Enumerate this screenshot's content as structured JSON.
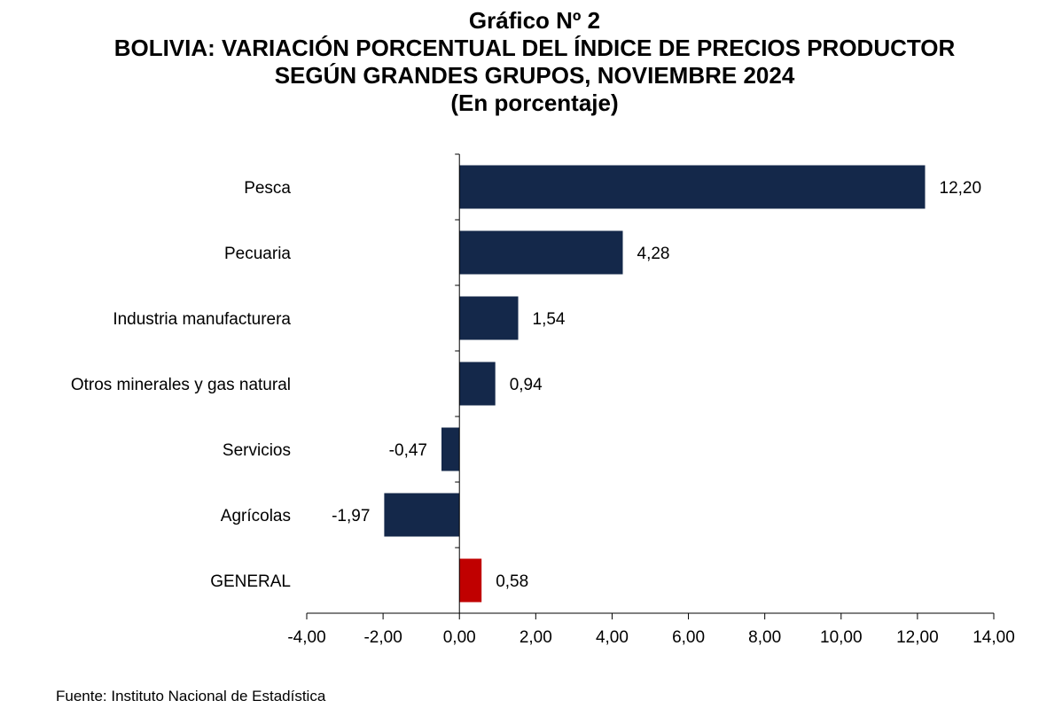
{
  "chart_data": {
    "type": "bar",
    "orientation": "horizontal",
    "title": "Gráfico Nº 2",
    "subtitle_lines": [
      "BOLIVIA: VARIACIÓN PORCENTUAL DEL ÍNDICE DE PRECIOS PRODUCTOR",
      "SEGÚN GRANDES GRUPOS, NOVIEMBRE 2024",
      "(En porcentaje)"
    ],
    "categories": [
      "Pesca",
      "Pecuaria",
      "Industria manufacturera",
      "Otros minerales y gas natural",
      "Servicios",
      "Agrícolas",
      "GENERAL"
    ],
    "values": [
      12.2,
      4.28,
      1.54,
      0.94,
      -0.47,
      -1.97,
      0.58
    ],
    "value_labels": [
      "12,20",
      "4,28",
      "1,54",
      "0,94",
      "-0,47",
      "-1,97",
      "0,58"
    ],
    "bar_colors": [
      "#14284a",
      "#14284a",
      "#14284a",
      "#14284a",
      "#14284a",
      "#14284a",
      "#c00000"
    ],
    "xlim": [
      -4,
      14
    ],
    "x_ticks": [
      -4,
      -2,
      0,
      2,
      4,
      6,
      8,
      10,
      12,
      14
    ],
    "x_tick_labels": [
      "-4,00",
      "-2,00",
      "0,00",
      "2,00",
      "4,00",
      "6,00",
      "8,00",
      "10,00",
      "12,00",
      "14,00"
    ],
    "grid": false,
    "legend": "none"
  },
  "source": "Fuente: Instituto Nacional de Estadística"
}
